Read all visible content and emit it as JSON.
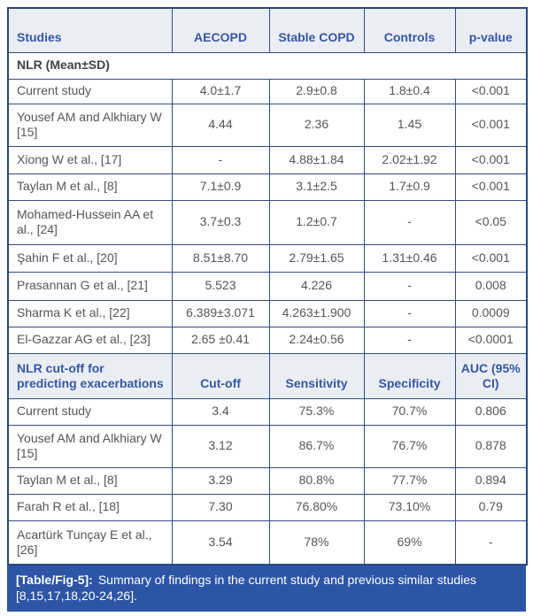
{
  "colors": {
    "header_bg": "#ebedf5",
    "header_text": "#3457a5",
    "border": "#274879",
    "body_text": "#55565a",
    "caption_bg": "#2c55a5",
    "caption_text": "#ffffff"
  },
  "section1": {
    "header": {
      "studies": "Studies",
      "col1": "AECOPD",
      "col2": "Stable COPD",
      "col3": "Controls",
      "col4": "p-value"
    },
    "title": "NLR (Mean±SD)",
    "rows": [
      {
        "cells": [
          "Current study",
          "4.0±1.7",
          "2.9±0.8",
          "1.8±0.4",
          "<0.001"
        ]
      },
      {
        "cells": [
          "Yousef AM and Alkhiary W [15]",
          "4.44",
          "2.36",
          "1.45",
          "<0.001"
        ]
      },
      {
        "cells": [
          "Xiong W et al., [17]",
          "-",
          "4.88±1.84",
          "2.02±1.92",
          "<0.001"
        ]
      },
      {
        "cells": [
          "Taylan M et al., [8]",
          "7.1±0.9",
          "3.1±2.5",
          "1.7±0.9",
          "<0.001"
        ]
      },
      {
        "cells": [
          "Mohamed-Hussein AA et al., [24]",
          "3.7±0.3",
          "1.2±0.7",
          "-",
          "<0.05"
        ]
      },
      {
        "cells": [
          "Şahin F et al., [20]",
          "8.51±8.70",
          "2.79±1.65",
          "1.31±0.46",
          "<0.001"
        ]
      },
      {
        "cells": [
          "Prasannan G et al., [21]",
          "5.523",
          "4.226",
          "-",
          "0.008"
        ]
      },
      {
        "cells": [
          "Sharma K et al., [22]",
          "6.389±3.071",
          "4.263±1.900",
          "-",
          "0.0009"
        ]
      },
      {
        "cells": [
          "El-Gazzar AG et al., [23]",
          "2.65 ±0.41",
          "2.24±0.56",
          "-",
          "<0.0001"
        ]
      }
    ]
  },
  "section2": {
    "header": {
      "studies": "NLR cut-off for predicting exacerbations",
      "col1": "Cut-off",
      "col2": "Sensitivity",
      "col3": "Specificity",
      "col4": "AUC (95% CI)"
    },
    "rows": [
      {
        "cells": [
          "Current study",
          "3.4",
          "75.3%",
          "70.7%",
          "0.806"
        ]
      },
      {
        "cells": [
          "Yousef AM and Alkhiary W [15]",
          "3.12",
          "86.7%",
          "76.7%",
          "0.878"
        ]
      },
      {
        "cells": [
          "Taylan M et al., [8]",
          "3.29",
          "80.8%",
          "77.7%",
          "0.894"
        ]
      },
      {
        "cells": [
          "Farah R et al., [18]",
          "7.30",
          "76.80%",
          "73.10%",
          "0.79"
        ]
      },
      {
        "cells": [
          "Acartürk Tunçay E et al., [26]",
          "3.54",
          "78%",
          "69%",
          "-"
        ]
      }
    ]
  },
  "caption": {
    "label": "[Table/Fig-5]:",
    "text": "Summary of findings in the current study and previous similar studies [8,15,17,18,20-24,26]."
  }
}
